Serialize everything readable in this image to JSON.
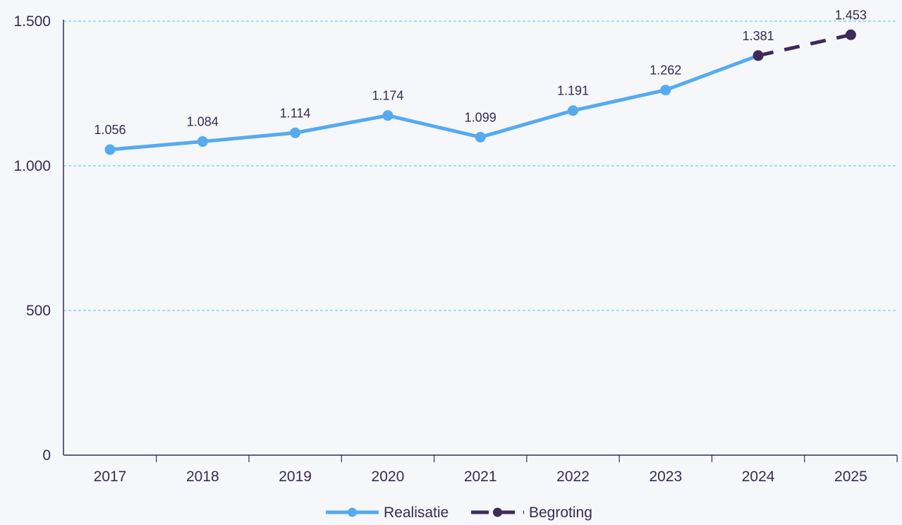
{
  "chart_data": {
    "type": "line",
    "categories": [
      "2017",
      "2018",
      "2019",
      "2020",
      "2021",
      "2022",
      "2023",
      "2024",
      "2025"
    ],
    "series": [
      {
        "name": "Realisatie",
        "color": "#56aaf0",
        "style": "solid",
        "x": [
          "2017",
          "2018",
          "2019",
          "2020",
          "2021",
          "2022",
          "2023",
          "2024"
        ],
        "values": [
          1056,
          1084,
          1114,
          1174,
          1099,
          1191,
          1262,
          1381
        ],
        "labels": [
          "1.056",
          "1.084",
          "1.114",
          "1.174",
          "1.099",
          "1.191",
          "1.262",
          "1.381"
        ]
      },
      {
        "name": "Begroting",
        "color": "#3d2a58",
        "style": "dashed",
        "x": [
          "2024",
          "2025"
        ],
        "values": [
          1381,
          1453
        ],
        "labels": [
          "",
          "1.453"
        ]
      }
    ],
    "yticks": [
      0,
      500,
      1000,
      1500
    ],
    "ytick_labels": [
      "0",
      "500",
      "1.000",
      "1.500"
    ],
    "ylim": [
      0,
      1500
    ],
    "grid": true,
    "grid_color": "#5bc0e6",
    "legend_position": "bottom-center"
  }
}
